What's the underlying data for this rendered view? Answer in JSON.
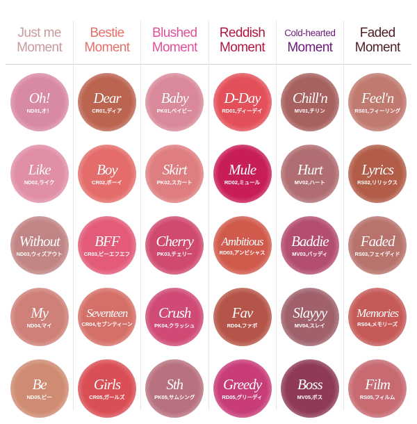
{
  "columns": [
    {
      "line1": "Just me",
      "line2": "Moment",
      "color": "#c99a9d",
      "swatches": [
        {
          "name": "Oh!",
          "code": "ND01,オ！",
          "color": "#d98aa3"
        },
        {
          "name": "Like",
          "code": "ND02,ライク",
          "color": "#e08fa7"
        },
        {
          "name": "Without",
          "code": "ND03,ウィズアウト",
          "color": "#c28585"
        },
        {
          "name": "My",
          "code": "ND04,マイ",
          "color": "#cf8078"
        },
        {
          "name": "Be",
          "code": "ND05,ビー",
          "color": "#cf8c72"
        }
      ]
    },
    {
      "line1": "Bestie",
      "line2": "Moment",
      "color": "#e5706c",
      "swatches": [
        {
          "name": "Dear",
          "code": "CR01,ディア",
          "color": "#bb6450"
        },
        {
          "name": "Boy",
          "code": "CR02,ボーイ",
          "color": "#e46d6b"
        },
        {
          "name": "BFF",
          "code": "CR03,ビーエフエフ",
          "color": "#e35b78"
        },
        {
          "name": "Seventeen",
          "code": "CR04,セブンティーン",
          "color": "#d57068"
        },
        {
          "name": "Girls",
          "code": "CR05,ガールズ",
          "color": "#d94f55"
        }
      ]
    },
    {
      "line1": "Blushed",
      "line2": "Moment",
      "color": "#e0509a",
      "swatches": [
        {
          "name": "Baby",
          "code": "PK01,ベイビー",
          "color": "#d9899a"
        },
        {
          "name": "Skirt",
          "code": "PK02,スカート",
          "color": "#df7e80"
        },
        {
          "name": "Cherry",
          "code": "PK03,チェリー",
          "color": "#d04a6f"
        },
        {
          "name": "Crush",
          "code": "PK04,クラッシュ",
          "color": "#cf4a74"
        },
        {
          "name": "Sth",
          "code": "PK05,サムシング",
          "color": "#b8717e"
        }
      ]
    },
    {
      "line1": "Reddish",
      "line2": "Moment",
      "color": "#b3163f",
      "swatches": [
        {
          "name": "D-Day",
          "code": "RD01,ディーデイ",
          "color": "#e4505a"
        },
        {
          "name": "Mule",
          "code": "RD02,ミュール",
          "color": "#c81e58"
        },
        {
          "name": "Ambitious",
          "code": "RD03,アンビシャス",
          "color": "#d05b4d"
        },
        {
          "name": "Fav",
          "code": "RD04,ファボ",
          "color": "#b55448"
        },
        {
          "name": "Greedy",
          "code": "RD05,グリーディ",
          "color": "#c83c78"
        }
      ]
    },
    {
      "line1": "Cold-hearted",
      "line2": "Moment",
      "color": "#6a1a78",
      "swatches": [
        {
          "name": "Chill'n",
          "code": "MV01,チリン",
          "color": "#a7615f"
        },
        {
          "name": "Hurt",
          "code": "MV02,ハート",
          "color": "#b06e72"
        },
        {
          "name": "Baddie",
          "code": "MV03,バッディ",
          "color": "#b34e6e"
        },
        {
          "name": "Slayyy",
          "code": "MV04,スレイ",
          "color": "#a0616b"
        },
        {
          "name": "Boss",
          "code": "MV05,ボス",
          "color": "#8f3b57"
        }
      ]
    },
    {
      "line1": "Faded",
      "line2": "Moment",
      "color": "#4d1e24",
      "swatches": [
        {
          "name": "Feel'n",
          "code": "RS01,フィーリング",
          "color": "#c07a70"
        },
        {
          "name": "Lyrics",
          "code": "RS02,リリックス",
          "color": "#b25d48"
        },
        {
          "name": "Faded",
          "code": "RS03,フェイディド",
          "color": "#b8736d"
        },
        {
          "name": "Memories",
          "code": "RS04,メモリーズ",
          "color": "#c65a58"
        },
        {
          "name": "Film",
          "code": "RS05,フィルム",
          "color": "#c76a72"
        }
      ]
    }
  ]
}
